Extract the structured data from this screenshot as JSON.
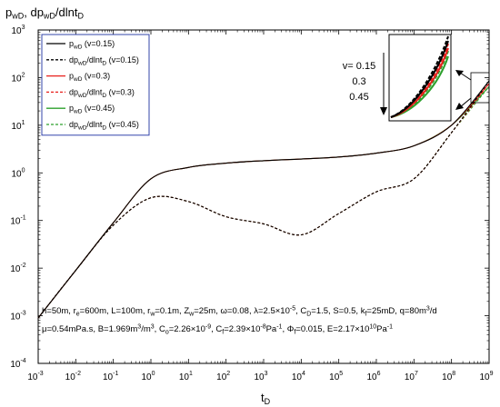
{
  "chart_data": {
    "type": "line",
    "x_scale": "log",
    "y_scale": "log",
    "xlim": [
      0.001,
      1000000000
    ],
    "ylim": [
      0.0001,
      1000
    ],
    "x_ticks": [
      {
        "base": "10",
        "exp": "-3",
        "value": 0.001
      },
      {
        "base": "10",
        "exp": "-2",
        "value": 0.01
      },
      {
        "base": "10",
        "exp": "-1",
        "value": 0.1
      },
      {
        "base": "10",
        "exp": "0",
        "value": 1
      },
      {
        "base": "10",
        "exp": "1",
        "value": 10
      },
      {
        "base": "10",
        "exp": "2",
        "value": 100
      },
      {
        "base": "10",
        "exp": "3",
        "value": 1000
      },
      {
        "base": "10",
        "exp": "4",
        "value": 10000
      },
      {
        "base": "10",
        "exp": "5",
        "value": 100000
      },
      {
        "base": "10",
        "exp": "6",
        "value": 1000000
      },
      {
        "base": "10",
        "exp": "7",
        "value": 10000000
      },
      {
        "base": "10",
        "exp": "8",
        "value": 100000000
      },
      {
        "base": "10",
        "exp": "9",
        "value": 1000000000
      }
    ],
    "y_ticks": [
      {
        "base": "10",
        "exp": "-4",
        "value": 0.0001
      },
      {
        "base": "10",
        "exp": "-3",
        "value": 0.001
      },
      {
        "base": "10",
        "exp": "-2",
        "value": 0.01
      },
      {
        "base": "10",
        "exp": "-1",
        "value": 0.1
      },
      {
        "base": "10",
        "exp": "0",
        "value": 1
      },
      {
        "base": "10",
        "exp": "1",
        "value": 10
      },
      {
        "base": "10",
        "exp": "2",
        "value": 100
      },
      {
        "base": "10",
        "exp": "3",
        "value": 1000
      }
    ],
    "xlabel": {
      "main": "t",
      "sub": "D"
    },
    "ylabel": [
      {
        "t": "p",
        "sub": false
      },
      {
        "t": "wD",
        "sub": true
      },
      {
        "t": ", dp",
        "sub": false
      },
      {
        "t": "wD",
        "sub": true
      },
      {
        "t": "/dlnt",
        "sub": false
      },
      {
        "t": "D",
        "sub": true
      }
    ],
    "legend_position": "top-left",
    "legend": [
      {
        "color": "#000000",
        "dashed": false,
        "parts": [
          {
            "t": "p",
            "sub": false
          },
          {
            "t": "wD",
            "sub": true
          },
          {
            "t": " (v=0.15)",
            "sub": false
          }
        ]
      },
      {
        "color": "#000000",
        "dashed": true,
        "parts": [
          {
            "t": "dp",
            "sub": false
          },
          {
            "t": "wD",
            "sub": true
          },
          {
            "t": "/dlnt",
            "sub": false
          },
          {
            "t": "D",
            "sub": true
          },
          {
            "t": " (v=0.15)",
            "sub": false
          }
        ]
      },
      {
        "color": "#e8201c",
        "dashed": false,
        "parts": [
          {
            "t": "p",
            "sub": false
          },
          {
            "t": "wD",
            "sub": true
          },
          {
            "t": " (v=0.3)",
            "sub": false
          }
        ]
      },
      {
        "color": "#e8201c",
        "dashed": true,
        "parts": [
          {
            "t": "dp",
            "sub": false
          },
          {
            "t": "wD",
            "sub": true
          },
          {
            "t": "/dlnt",
            "sub": false
          },
          {
            "t": "D",
            "sub": true
          },
          {
            "t": " (v=0.3)",
            "sub": false
          }
        ]
      },
      {
        "color": "#2ca02c",
        "dashed": false,
        "parts": [
          {
            "t": "p",
            "sub": false
          },
          {
            "t": "wD",
            "sub": true
          },
          {
            "t": " (v=0.45)",
            "sub": false
          }
        ]
      },
      {
        "color": "#2ca02c",
        "dashed": true,
        "parts": [
          {
            "t": "dp",
            "sub": false
          },
          {
            "t": "wD",
            "sub": true
          },
          {
            "t": "/dlnt",
            "sub": false
          },
          {
            "t": "D",
            "sub": true
          },
          {
            "t": " (v=0.45)",
            "sub": false
          }
        ]
      }
    ],
    "series": [
      {
        "name": "pwD (v=0.15)",
        "color": "#000000",
        "dashed": false,
        "x": [
          0.001,
          0.01,
          0.1,
          1,
          10,
          100,
          1000,
          10000,
          100000,
          1000000,
          10000000,
          100000000,
          1000000000
        ],
        "y": [
          0.0009,
          0.009,
          0.09,
          0.75,
          1.3,
          1.6,
          1.8,
          1.95,
          2.15,
          2.6,
          3.7,
          10,
          85
        ]
      },
      {
        "name": "dpwD/dlntD (v=0.15)",
        "color": "#000000",
        "dashed": true,
        "x": [
          0.001,
          0.01,
          0.1,
          1,
          10,
          100,
          1000,
          10000,
          100000,
          1000000,
          10000000,
          100000000,
          1000000000
        ],
        "y": [
          0.0009,
          0.009,
          0.08,
          0.3,
          0.25,
          0.12,
          0.085,
          0.05,
          0.14,
          0.4,
          0.75,
          7,
          85
        ]
      },
      {
        "name": "pwD (v=0.3)",
        "color": "#e8201c",
        "dashed": false,
        "x": [
          0.001,
          0.01,
          0.1,
          1,
          10,
          100,
          1000,
          10000,
          100000,
          1000000,
          10000000,
          100000000,
          1000000000
        ],
        "y": [
          0.0009,
          0.009,
          0.09,
          0.75,
          1.3,
          1.6,
          1.8,
          1.95,
          2.15,
          2.6,
          3.7,
          10,
          75
        ]
      },
      {
        "name": "dpwD/dlntD (v=0.3)",
        "color": "#e8201c",
        "dashed": true,
        "x": [
          0.001,
          0.01,
          0.1,
          1,
          10,
          100,
          1000,
          10000,
          100000,
          1000000,
          10000000,
          100000000,
          1000000000
        ],
        "y": [
          0.0009,
          0.009,
          0.08,
          0.3,
          0.25,
          0.12,
          0.085,
          0.05,
          0.14,
          0.4,
          0.75,
          7,
          75
        ]
      },
      {
        "name": "pwD (v=0.45)",
        "color": "#2ca02c",
        "dashed": false,
        "x": [
          0.001,
          0.01,
          0.1,
          1,
          10,
          100,
          1000,
          10000,
          100000,
          1000000,
          10000000,
          100000000,
          1000000000
        ],
        "y": [
          0.0009,
          0.009,
          0.09,
          0.75,
          1.3,
          1.6,
          1.8,
          1.95,
          2.15,
          2.6,
          3.7,
          10,
          65
        ]
      },
      {
        "name": "dpwD/dlntD (v=0.45)",
        "color": "#2ca02c",
        "dashed": true,
        "x": [
          0.001,
          0.01,
          0.1,
          1,
          10,
          100,
          1000,
          10000,
          100000,
          1000000,
          10000000,
          100000000,
          1000000000
        ],
        "y": [
          0.0009,
          0.009,
          0.08,
          0.3,
          0.25,
          0.12,
          0.085,
          0.05,
          0.14,
          0.4,
          0.75,
          7,
          65
        ]
      }
    ],
    "annotations": {
      "params_line1": [
        {
          "t": "h=50m, r",
          "s": ""
        },
        {
          "t": "e",
          "s": "sub"
        },
        {
          "t": "=600m, L=100m, r",
          "s": ""
        },
        {
          "t": "w",
          "s": "sub"
        },
        {
          "t": "=0.1m, Z",
          "s": ""
        },
        {
          "t": "w",
          "s": "sub"
        },
        {
          "t": "=25m, ω=0.08, λ=2.5×10",
          "s": ""
        },
        {
          "t": "-5",
          "s": "sup"
        },
        {
          "t": ", C",
          "s": ""
        },
        {
          "t": "D",
          "s": "sub"
        },
        {
          "t": "=1.5, S=0.5, k",
          "s": ""
        },
        {
          "t": "f",
          "s": "sub"
        },
        {
          "t": "=25mD, q=80m",
          "s": ""
        },
        {
          "t": "3",
          "s": "sup"
        },
        {
          "t": "/d",
          "s": ""
        }
      ],
      "params_line2": [
        {
          "t": "μ=0.54mPa.s, B=1.969m",
          "s": ""
        },
        {
          "t": "3",
          "s": "sup"
        },
        {
          "t": "/m",
          "s": ""
        },
        {
          "t": "3",
          "s": "sup"
        },
        {
          "t": ", C",
          "s": ""
        },
        {
          "t": "o",
          "s": "sub"
        },
        {
          "t": "=2.26×10",
          "s": ""
        },
        {
          "t": "-9",
          "s": "sup"
        },
        {
          "t": ", C",
          "s": ""
        },
        {
          "t": "f",
          "s": "sub"
        },
        {
          "t": "=2.39×10",
          "s": ""
        },
        {
          "t": "-8",
          "s": "sup"
        },
        {
          "t": "Pa",
          "s": ""
        },
        {
          "t": "-1",
          "s": "sup"
        },
        {
          "t": ", Φ",
          "s": ""
        },
        {
          "t": "f",
          "s": "sub"
        },
        {
          "t": "=0.015, E=2.17×10",
          "s": ""
        },
        {
          "t": "10",
          "s": "sup"
        },
        {
          "t": "Pa",
          "s": ""
        },
        {
          "t": "-1",
          "s": "sup"
        }
      ],
      "inset_labels": [
        "v= 0.15",
        "0.3",
        "0.45"
      ]
    }
  }
}
